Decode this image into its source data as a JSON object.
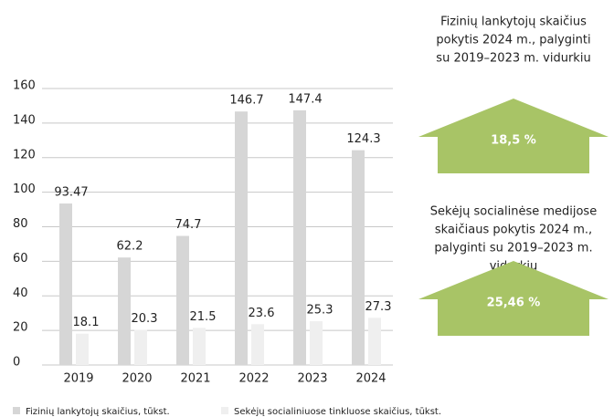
{
  "chart_data": {
    "type": "bar",
    "categories": [
      "2019",
      "2020",
      "2021",
      "2022",
      "2023",
      "2024"
    ],
    "series": [
      {
        "name": "Fizinių lankytojų skaičius, tūkst.",
        "color": "#d6d6d6",
        "values": [
          93.47,
          62.2,
          74.7,
          146.7,
          147.4,
          124.3
        ]
      },
      {
        "name": "Sekėjų socialiniuose tinkluose skaičius, tūkst.",
        "color": "#efefef",
        "values": [
          18.1,
          20.3,
          21.5,
          23.6,
          25.3,
          27.3
        ]
      }
    ],
    "ylim": [
      0,
      160
    ],
    "yticks": [
      0,
      20,
      40,
      60,
      80,
      100,
      120,
      140,
      160
    ],
    "grid": true
  },
  "panels": [
    {
      "lines": [
        "Fizinių lankytojų skaičius",
        "pokytis 2024 m., palyginti",
        "su 2019–2023 m. vidurkiu"
      ],
      "value": "18,5 %"
    },
    {
      "lines": [
        "Sekėjų socialinėse medijose",
        "skaičiaus pokytis 2024 m.,",
        "palyginti su 2019–2023 m.",
        "vidurkiu"
      ],
      "value": "25,46 %"
    }
  ]
}
